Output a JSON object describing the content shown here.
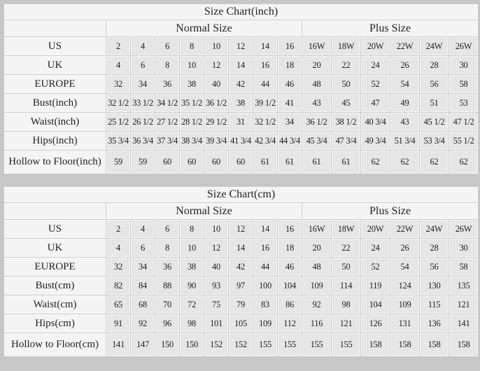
{
  "page": {
    "background": "#c7c7c7",
    "data_cell_bg": "#e6e6e6",
    "label_cell_bg": "#f4f4f4",
    "border_color": "#c9c9c9",
    "text_color": "#1f1f1f"
  },
  "chart_data": [
    {
      "type": "table",
      "title": "Size Chart(inch)",
      "column_groups": [
        {
          "label": "Normal Size",
          "span": 8
        },
        {
          "label": "Plus Size",
          "span": 6
        }
      ],
      "rows": [
        {
          "label": "US",
          "values": [
            "2",
            "4",
            "6",
            "8",
            "10",
            "12",
            "14",
            "16",
            "16W",
            "18W",
            "20W",
            "22W",
            "24W",
            "26W"
          ]
        },
        {
          "label": "UK",
          "values": [
            "4",
            "6",
            "8",
            "10",
            "12",
            "14",
            "16",
            "18",
            "20",
            "22",
            "24",
            "26",
            "28",
            "30"
          ]
        },
        {
          "label": "EUROPE",
          "values": [
            "32",
            "34",
            "36",
            "38",
            "40",
            "42",
            "44",
            "46",
            "48",
            "50",
            "52",
            "54",
            "56",
            "58"
          ]
        },
        {
          "label": "Bust(inch)",
          "values": [
            "32 1/2",
            "33 1/2",
            "34 1/2",
            "35 1/2",
            "36 1/2",
            "38",
            "39 1/2",
            "41",
            "43",
            "45",
            "47",
            "49",
            "51",
            "53"
          ]
        },
        {
          "label": "Waist(inch)",
          "values": [
            "25 1/2",
            "26 1/2",
            "27 1/2",
            "28 1/2",
            "29 1/2",
            "31",
            "32 1/2",
            "34",
            "36 1/2",
            "38 1/2",
            "40 3/4",
            "43",
            "45 1/2",
            "47 1/2"
          ]
        },
        {
          "label": "Hips(inch)",
          "values": [
            "35 3/4",
            "36 3/4",
            "37 3/4",
            "38 3/4",
            "39 3/4",
            "41 3/4",
            "42 3/4",
            "44 3/4",
            "45 3/4",
            "47 3/4",
            "49 3/4",
            "51 3/4",
            "53 3/4",
            "55 1/2"
          ]
        },
        {
          "label": "Hollow to Floor(inch)",
          "values": [
            "59",
            "59",
            "60",
            "60",
            "60",
            "60",
            "61",
            "61",
            "61",
            "61",
            "62",
            "62",
            "62",
            "62"
          ]
        }
      ]
    },
    {
      "type": "table",
      "title": "Size Chart(cm)",
      "column_groups": [
        {
          "label": "Normal Size",
          "span": 8
        },
        {
          "label": "Plus Size",
          "span": 6
        }
      ],
      "rows": [
        {
          "label": "US",
          "values": [
            "2",
            "4",
            "6",
            "8",
            "10",
            "12",
            "14",
            "16",
            "16W",
            "18W",
            "20W",
            "22W",
            "24W",
            "26W"
          ]
        },
        {
          "label": "UK",
          "values": [
            "4",
            "6",
            "8",
            "10",
            "12",
            "14",
            "16",
            "18",
            "20",
            "22",
            "24",
            "26",
            "28",
            "30"
          ]
        },
        {
          "label": "EUROPE",
          "values": [
            "32",
            "34",
            "36",
            "38",
            "40",
            "42",
            "44",
            "46",
            "48",
            "50",
            "52",
            "54",
            "56",
            "58"
          ]
        },
        {
          "label": "Bust(cm)",
          "values": [
            "82",
            "84",
            "88",
            "90",
            "93",
            "97",
            "100",
            "104",
            "109",
            "114",
            "119",
            "124",
            "130",
            "135"
          ]
        },
        {
          "label": "Waist(cm)",
          "values": [
            "65",
            "68",
            "70",
            "72",
            "75",
            "79",
            "83",
            "86",
            "92",
            "98",
            "104",
            "109",
            "115",
            "121"
          ]
        },
        {
          "label": "Hips(cm)",
          "values": [
            "91",
            "92",
            "96",
            "98",
            "101",
            "105",
            "109",
            "112",
            "116",
            "121",
            "126",
            "131",
            "136",
            "141"
          ]
        },
        {
          "label": "Hollow to Floor(cm)",
          "values": [
            "141",
            "147",
            "150",
            "150",
            "152",
            "152",
            "155",
            "155",
            "155",
            "155",
            "158",
            "158",
            "158",
            "158"
          ]
        }
      ]
    }
  ]
}
